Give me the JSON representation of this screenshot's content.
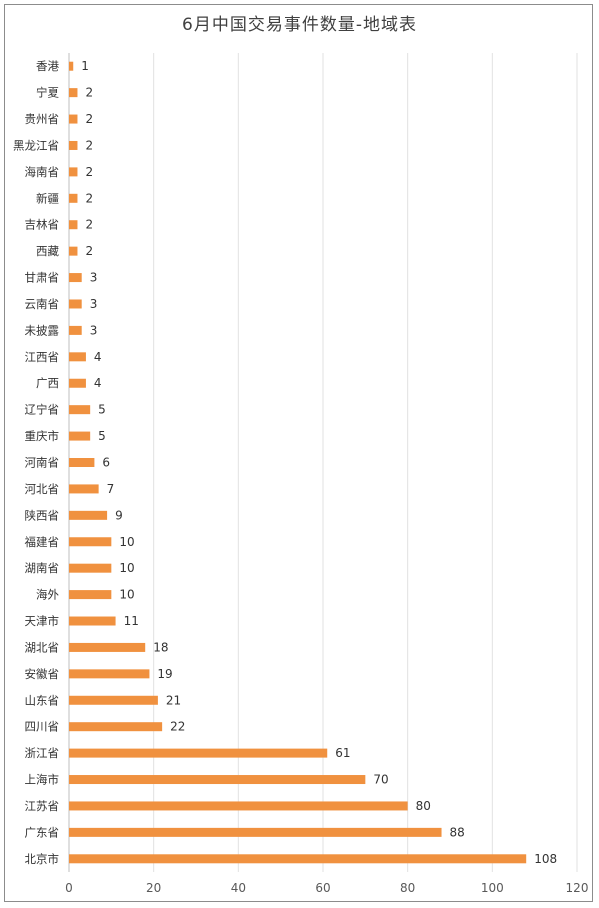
{
  "chart_data": {
    "type": "bar",
    "orientation": "horizontal",
    "title": "6月中国交易事件数量-地域表",
    "xlabel": "",
    "ylabel": "",
    "xlim": [
      0,
      120
    ],
    "x_ticks": [
      0,
      20,
      40,
      60,
      80,
      100,
      120
    ],
    "grid": "vertical",
    "bar_color": "#f0913f",
    "categories": [
      "香港",
      "宁夏",
      "贵州省",
      "黑龙江省",
      "海南省",
      "新疆",
      "吉林省",
      "西藏",
      "甘肃省",
      "云南省",
      "未披露",
      "江西省",
      "广西",
      "辽宁省",
      "重庆市",
      "河南省",
      "河北省",
      "陕西省",
      "福建省",
      "湖南省",
      "海外",
      "天津市",
      "湖北省",
      "安徽省",
      "山东省",
      "四川省",
      "浙江省",
      "上海市",
      "江苏省",
      "广东省",
      "北京市"
    ],
    "values": [
      1,
      2,
      2,
      2,
      2,
      2,
      2,
      2,
      3,
      3,
      3,
      4,
      4,
      5,
      5,
      6,
      7,
      9,
      10,
      10,
      10,
      11,
      18,
      19,
      21,
      22,
      61,
      70,
      80,
      88,
      108
    ]
  }
}
